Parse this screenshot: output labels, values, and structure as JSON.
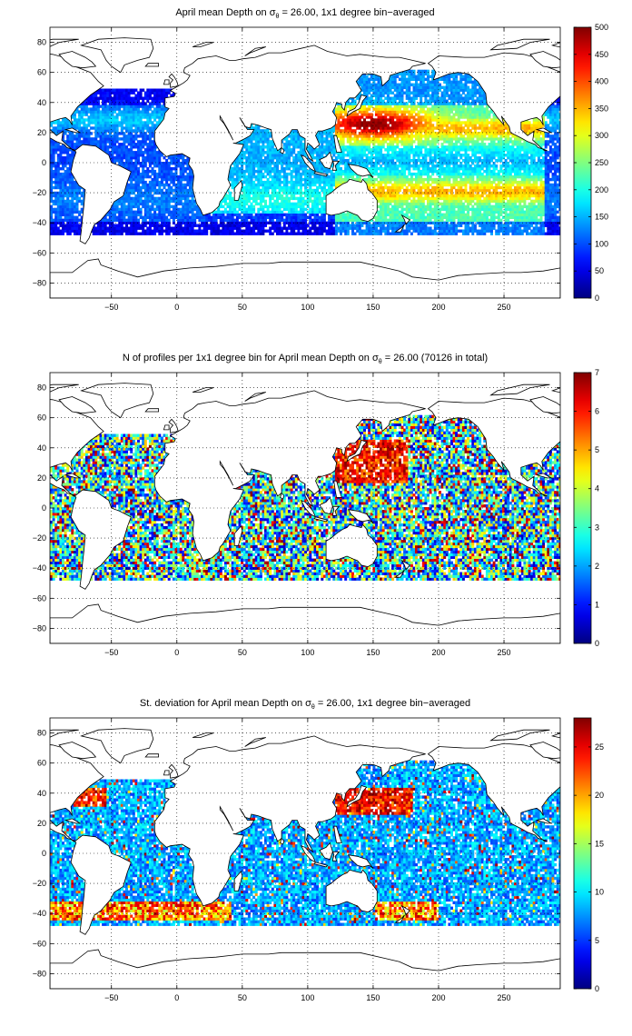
{
  "panels": [
    {
      "id": "depth",
      "title_prefix": "April mean Depth on ",
      "sigma": "σ",
      "sigma_sub": "θ",
      "title_suffix": " = 26.00, 1x1 degree bin−averaged",
      "colorbar": {
        "min": 0,
        "max": 500,
        "ticks": [
          "0",
          "50",
          "100",
          "150",
          "200",
          "250",
          "300",
          "350",
          "400",
          "450",
          "500"
        ]
      }
    },
    {
      "id": "count",
      "title_prefix": "N of profiles per 1x1 degree bin for April mean Depth on ",
      "sigma": "σ",
      "sigma_sub": "θ",
      "title_suffix": " = 26.00 (70126 in total)",
      "colorbar": {
        "min": 0,
        "max": 7,
        "ticks": [
          "0",
          "1",
          "2",
          "3",
          "4",
          "5",
          "6",
          "7"
        ]
      }
    },
    {
      "id": "stdev",
      "title_prefix": "St. deviation for April mean Depth on ",
      "sigma": "σ",
      "sigma_sub": "θ",
      "title_suffix": " = 26.00, 1x1 degree bin−averaged",
      "colorbar": {
        "min": 0,
        "max": 28,
        "ticks": [
          "0",
          "5",
          "10",
          "15",
          "20",
          "25"
        ]
      }
    }
  ],
  "axes": {
    "x_ticks": [
      "−50",
      "0",
      "50",
      "100",
      "150",
      "200",
      "250"
    ],
    "y_ticks": [
      "80",
      "60",
      "40",
      "20",
      "0",
      "−20",
      "−40",
      "−60",
      "−80"
    ]
  },
  "map": {
    "colormap": "jet",
    "grid": "dotted",
    "land_color": "#ffffff",
    "coastline_color": "#000000"
  }
}
